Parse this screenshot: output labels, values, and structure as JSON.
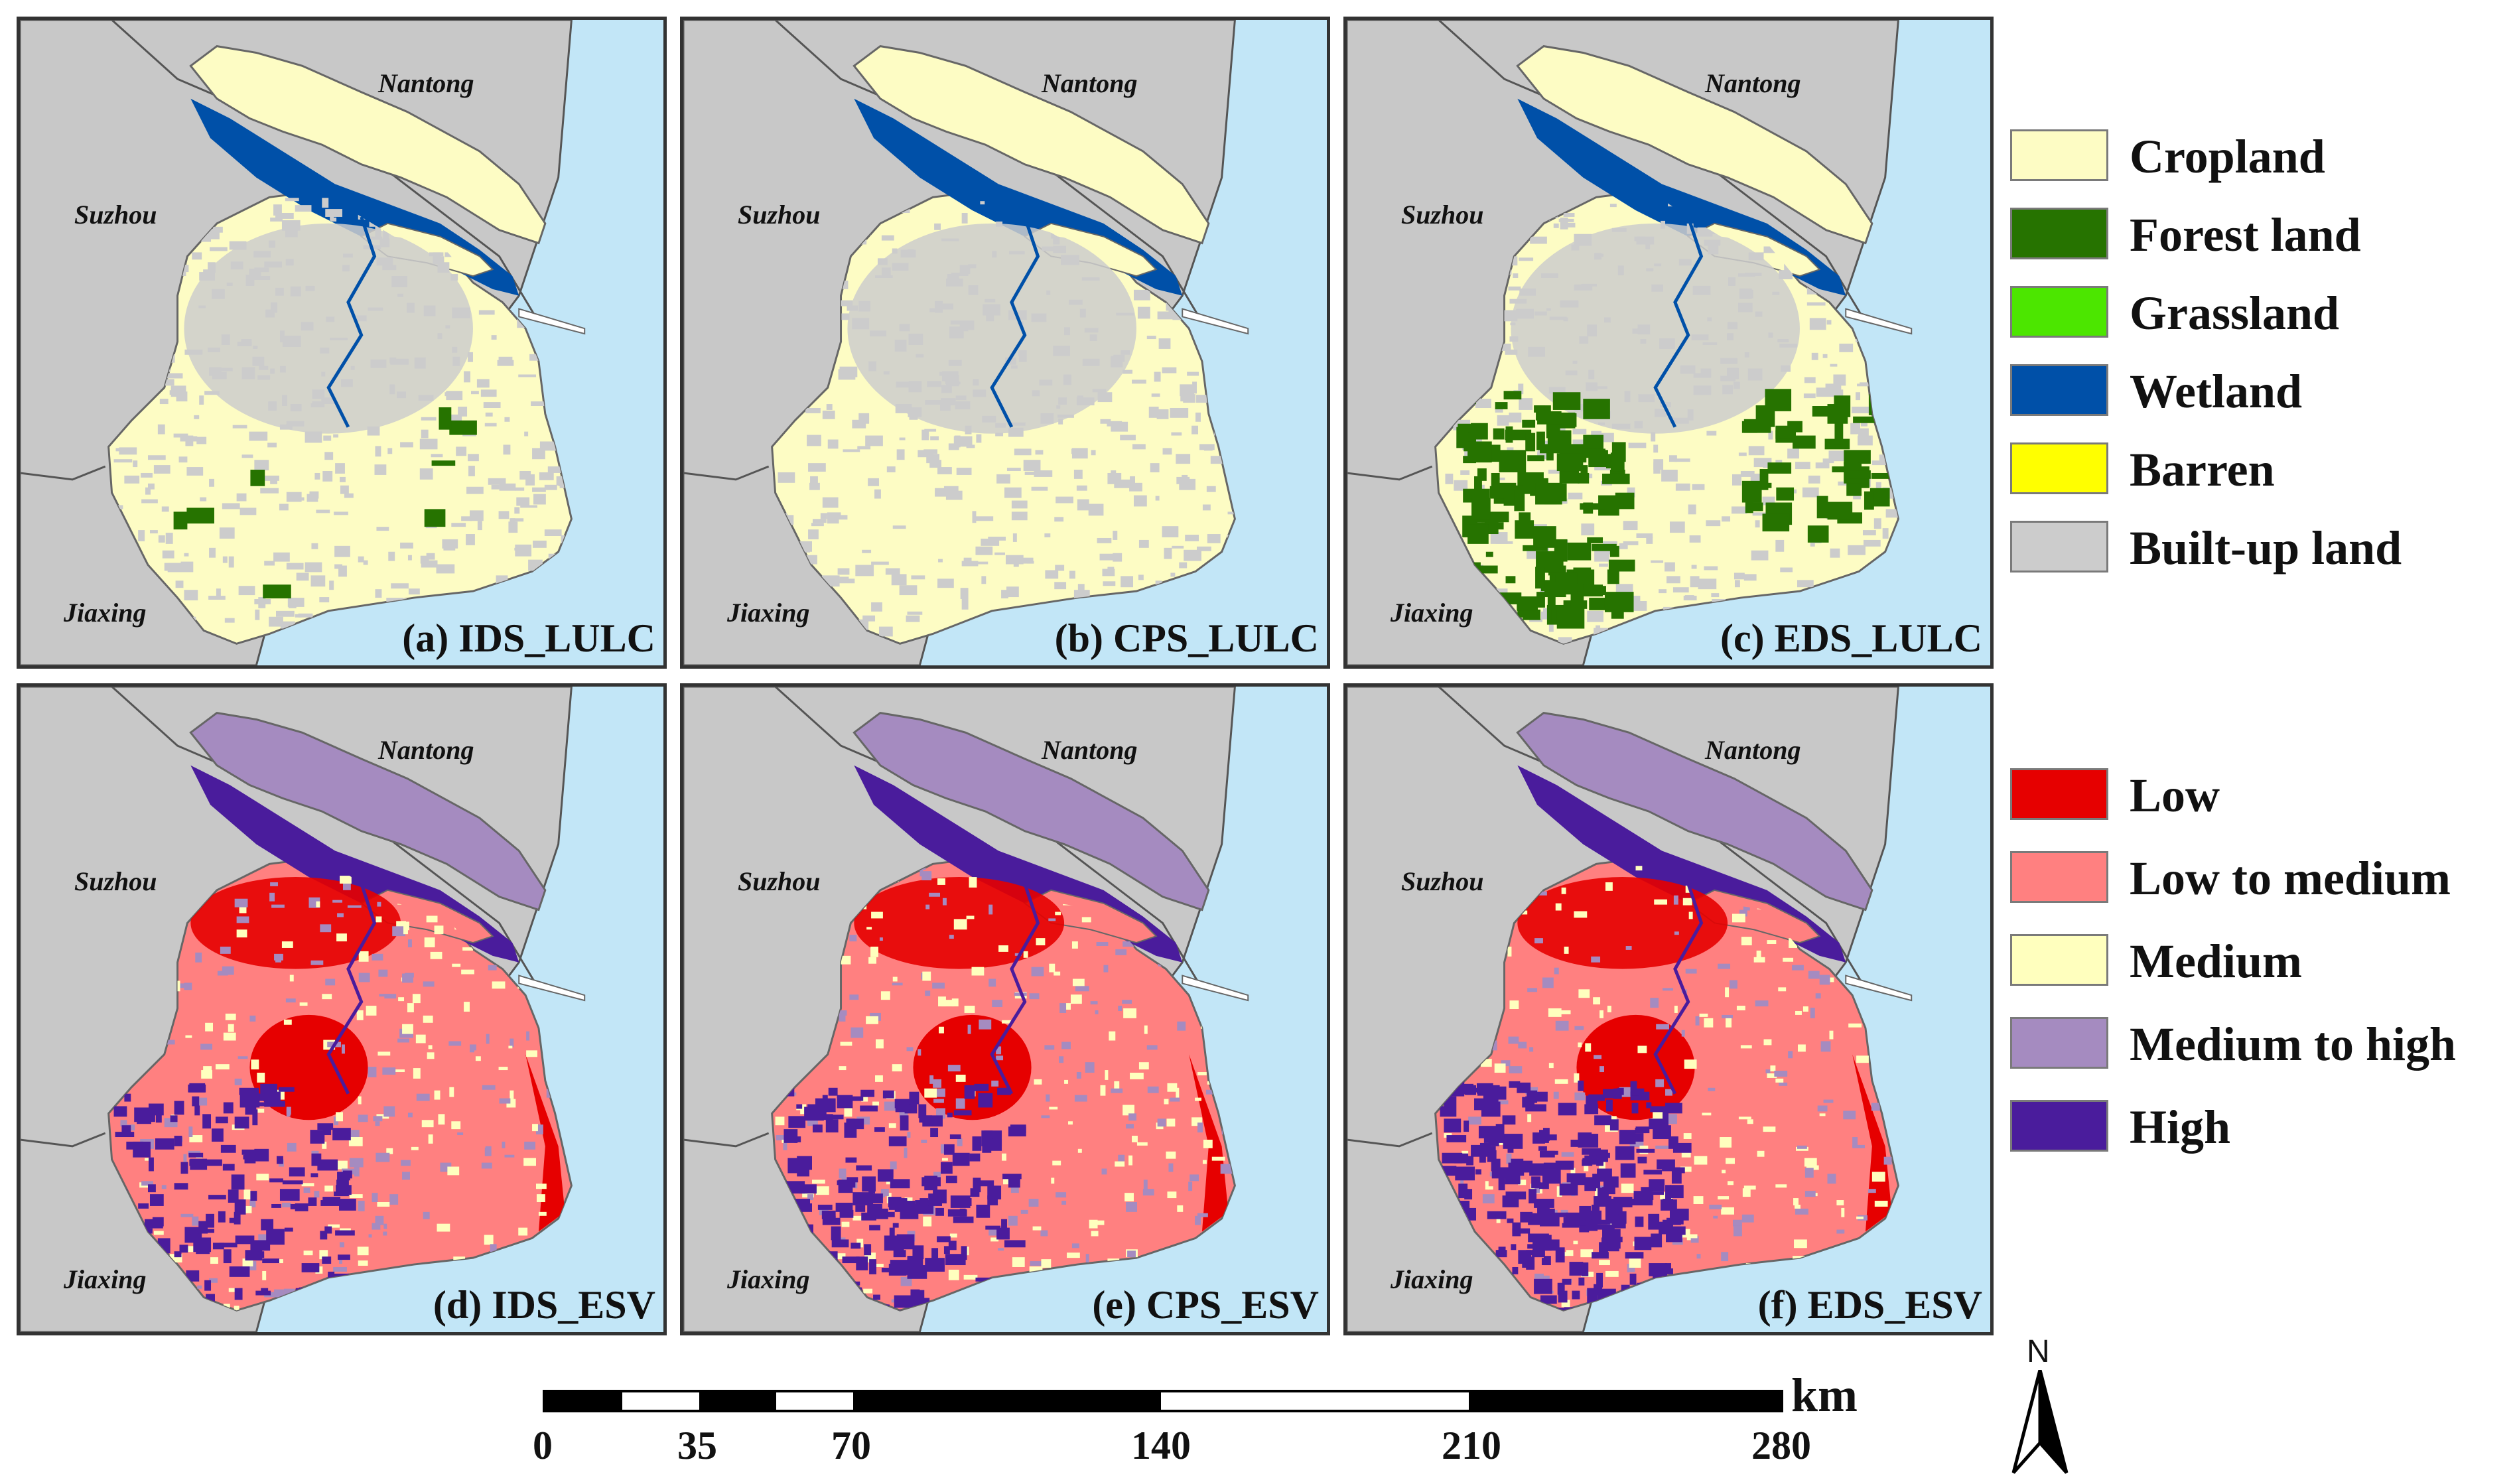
{
  "panels": [
    {
      "caption": "(a) IDS_LULC",
      "type": "lulc",
      "forest": 0.05
    },
    {
      "caption": "(b) CPS_LULC",
      "type": "lulc",
      "forest": 0.0
    },
    {
      "caption": "(c) EDS_LULC",
      "type": "lulc",
      "forest": 1.0
    },
    {
      "caption": "(d) IDS_ESV",
      "type": "esv",
      "high": 0.45
    },
    {
      "caption": "(e) CPS_ESV",
      "type": "esv",
      "high": 0.6
    },
    {
      "caption": "(f) EDS_ESV",
      "type": "esv",
      "high": 0.85
    }
  ],
  "cities": {
    "nantong": "Nantong",
    "suzhou": "Suzhou",
    "jiaxing": "Jiaxing"
  },
  "legend_lulc": [
    {
      "label": "Cropland",
      "color": "#fdfcc4"
    },
    {
      "label": "Forest land",
      "color": "#267300"
    },
    {
      "label": "Grassland",
      "color": "#4ce600"
    },
    {
      "label": "Wetland",
      "color": "#0050a8"
    },
    {
      "label": "Barren",
      "color": "#ffff00"
    },
    {
      "label": "Built-up land",
      "color": "#cccccc"
    }
  ],
  "legend_esv": [
    {
      "label": "Low",
      "color": "#e60000"
    },
    {
      "label": "Low to medium",
      "color": "#ff8080"
    },
    {
      "label": "Medium",
      "color": "#ffffbe"
    },
    {
      "label": "Medium to high",
      "color": "#a58bc0"
    },
    {
      "label": "High",
      "color": "#4a1c9c"
    }
  ],
  "scale_bar": {
    "unit": "km",
    "ticks": [
      "0",
      "35",
      "70",
      "140",
      "210",
      "280"
    ],
    "tick_values": [
      0,
      35,
      70,
      140,
      210,
      280
    ]
  },
  "north_arrow": {
    "label": "N"
  },
  "colors": {
    "sea": "#c2e6f7",
    "outside_land": "#c8c8c8",
    "builtup": "#cccccc",
    "cropland": "#fdfcc4",
    "wetland": "#0050a8",
    "forest": "#267300",
    "esv_low": "#e60000",
    "esv_lowmed": "#ff8080",
    "esv_med": "#ffffbe",
    "esv_medhigh": "#a58bc0",
    "esv_high": "#4a1c9c"
  }
}
